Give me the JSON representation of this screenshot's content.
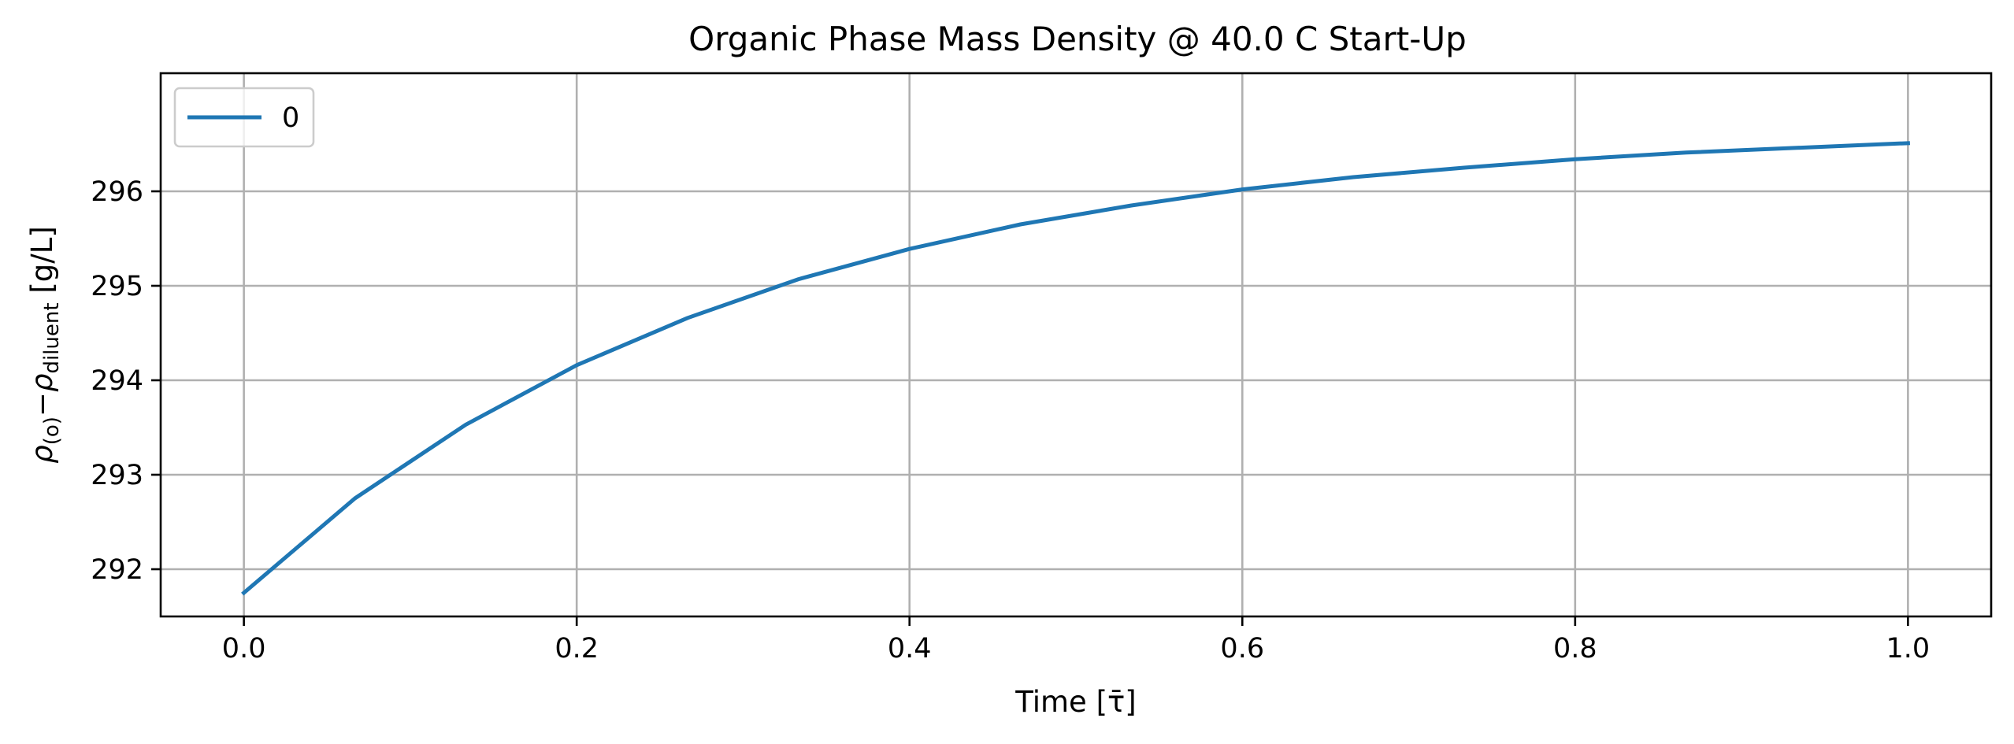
{
  "chart_data": {
    "type": "line",
    "title": "Organic Phase Mass Density @ 40.0 C Start-Up",
    "xlabel": "Time [τ̄]",
    "ylabel": {
      "rho": "ρ",
      "sub1": "(o)",
      "minus": "−",
      "rho2": "ρ",
      "sub2": "diluent",
      "unit": " [g/L]"
    },
    "xlim": [
      -0.05,
      1.05
    ],
    "ylim": [
      291.5,
      297.25
    ],
    "xticks": [
      0.0,
      0.2,
      0.4,
      0.6,
      0.8,
      1.0
    ],
    "xtick_labels": [
      "0.0",
      "0.2",
      "0.4",
      "0.6",
      "0.8",
      "1.0"
    ],
    "yticks": [
      292,
      293,
      294,
      295,
      296
    ],
    "ytick_labels": [
      "292",
      "293",
      "294",
      "295",
      "296"
    ],
    "grid": true,
    "legend_position": "top-left",
    "series": [
      {
        "name": "0",
        "color": "#1f77b4",
        "x": [
          0.0,
          0.0667,
          0.1333,
          0.2,
          0.2667,
          0.3333,
          0.4,
          0.4667,
          0.5333,
          0.6,
          0.6667,
          0.7333,
          0.8,
          0.8667,
          0.9333,
          1.0
        ],
        "y": [
          291.75,
          292.75,
          293.53,
          294.16,
          294.66,
          295.07,
          295.39,
          295.65,
          295.85,
          296.02,
          296.15,
          296.25,
          296.34,
          296.41,
          296.46,
          296.51
        ]
      }
    ]
  }
}
